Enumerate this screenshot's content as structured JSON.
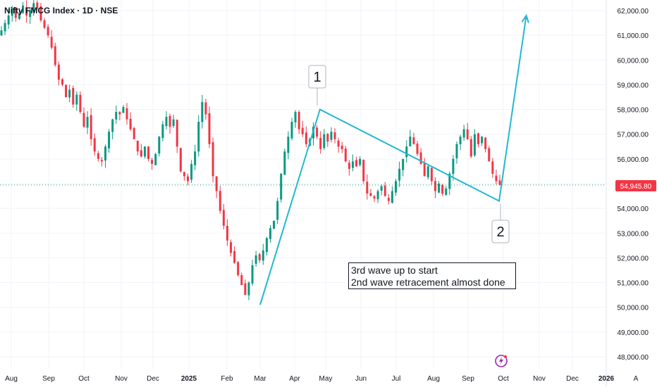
{
  "header": {
    "title": "Nifty FMCG Index · 1D · NSE"
  },
  "price_tag": {
    "value": "54,945.80",
    "color": "#f23645"
  },
  "wave_labels": [
    "1",
    "2"
  ],
  "annotation": {
    "line1": "3rd wave up to start",
    "line2": "2nd wave retracement almost done"
  },
  "footer": {
    "scale_mode": "A"
  },
  "colors": {
    "up": "#089981",
    "down": "#f23645",
    "drawing": "#22b8cf",
    "grid": "#f0f3fa",
    "last_price_line": "#089981"
  },
  "chart_data": {
    "type": "candlestick",
    "title": "Nifty FMCG Index · 1D · NSE",
    "y_axis_ticks": [
      "62,000.00",
      "61,000.00",
      "60,000.00",
      "59,000.00",
      "58,000.00",
      "57,000.00",
      "56,000.00",
      "55,000.00",
      "54,000.00",
      "53,000.00",
      "52,000.00",
      "51,000.00",
      "50,000.00",
      "49,000.00",
      "48,000.00"
    ],
    "x_axis_ticks": [
      "Aug",
      "Sep",
      "Oct",
      "Nov",
      "Dec",
      "2025",
      "Feb",
      "Mar",
      "Apr",
      "May",
      "Jun",
      "Jul",
      "Aug",
      "Sep",
      "Oct",
      "Nov",
      "Dec",
      "2026"
    ],
    "ylim": [
      47600,
      62500
    ],
    "last_price": 54945.8,
    "candles_closes": [
      61200,
      61500,
      61800,
      62100,
      61700,
      61900,
      62200,
      61800,
      62000,
      62300,
      62100,
      61600,
      61300,
      61000,
      60500,
      59800,
      59200,
      59000,
      58500,
      58800,
      58200,
      58600,
      57900,
      57300,
      57700,
      56800,
      56300,
      56000,
      55900,
      56500,
      57100,
      57600,
      57900,
      57800,
      58100,
      57600,
      57200,
      56800,
      56300,
      56100,
      56500,
      56000,
      55800,
      56200,
      56900,
      57400,
      57700,
      57300,
      57600,
      56500,
      55500,
      55300,
      55100,
      55800,
      56300,
      57500,
      58300,
      57800,
      56600,
      55300,
      54700,
      53900,
      53300,
      52700,
      52200,
      51800,
      51300,
      50900,
      50500,
      51000,
      51700,
      52100,
      51900,
      52300,
      52800,
      53200,
      53500,
      54300,
      55400,
      56300,
      56900,
      57500,
      57900,
      57200,
      57000,
      56600,
      56800,
      57300,
      56900,
      56400,
      57000,
      56700,
      57100,
      56800,
      56500,
      56400,
      55900,
      55600,
      55900,
      55700,
      56000,
      55100,
      54600,
      54500,
      54400,
      54700,
      54900,
      54500,
      54300,
      54700,
      55100,
      55600,
      56000,
      56500,
      56900,
      56600,
      56200,
      55800,
      55300,
      55700,
      55100,
      54700,
      55000,
      54600,
      54800,
      55400,
      56000,
      56600,
      56900,
      57200,
      56800,
      56100,
      57000,
      56600,
      56900,
      56400,
      55900,
      55400,
      55100,
      54950
    ],
    "drawing_line_points": [
      {
        "x": "2025-03-01",
        "y": 50100
      },
      {
        "x": "2025-04-23",
        "y": 58000
      },
      {
        "x": "2025-09-28",
        "y": 54300
      },
      {
        "x": "2025-10-21",
        "y": 61800
      }
    ]
  }
}
